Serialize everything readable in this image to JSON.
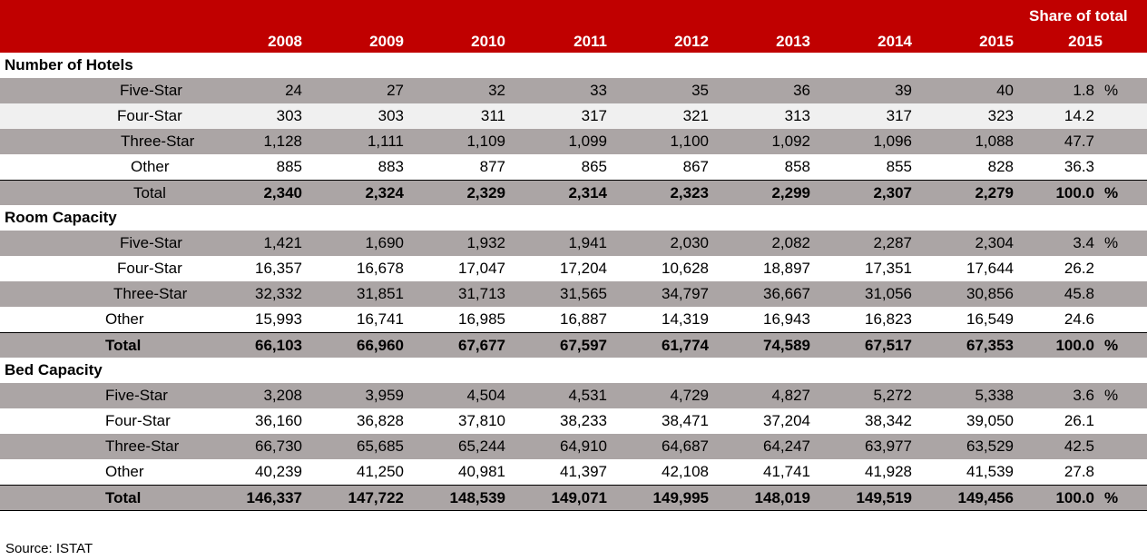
{
  "header": {
    "share_line1": "Share of total",
    "columns": [
      "2008",
      "2009",
      "2010",
      "2011",
      "2012",
      "2013",
      "2014",
      "2015",
      "2015"
    ]
  },
  "sections": [
    {
      "title": "Number of Hotels",
      "rows": [
        {
          "label": "Five-Star",
          "values": [
            "24",
            "27",
            "32",
            "33",
            "35",
            "36",
            "39",
            "40",
            "1.8"
          ],
          "unit": "%"
        },
        {
          "label": "Four-Star",
          "values": [
            "303",
            "303",
            "311",
            "317",
            "321",
            "313",
            "317",
            "323",
            "14.2"
          ],
          "unit": ""
        },
        {
          "label": "Three-Star",
          "values": [
            "1,128",
            "1,111",
            "1,109",
            "1,099",
            "1,100",
            "1,092",
            "1,096",
            "1,088",
            "47.7"
          ],
          "unit": ""
        },
        {
          "label": "Other",
          "values": [
            "885",
            "883",
            "877",
            "865",
            "867",
            "858",
            "855",
            "828",
            "36.3"
          ],
          "unit": ""
        },
        {
          "label": "Total",
          "values": [
            "2,340",
            "2,324",
            "2,329",
            "2,314",
            "2,323",
            "2,299",
            "2,307",
            "2,279",
            "100.0"
          ],
          "unit": "%"
        }
      ]
    },
    {
      "title": "Room Capacity",
      "rows": [
        {
          "label": "Five-Star",
          "values": [
            "1,421",
            "1,690",
            "1,932",
            "1,941",
            "2,030",
            "2,082",
            "2,287",
            "2,304",
            "3.4"
          ],
          "unit": "%"
        },
        {
          "label": "Four-Star",
          "values": [
            "16,357",
            "16,678",
            "17,047",
            "17,204",
            "10,628",
            "18,897",
            "17,351",
            "17,644",
            "26.2"
          ],
          "unit": ""
        },
        {
          "label": "Three-Star",
          "values": [
            "32,332",
            "31,851",
            "31,713",
            "31,565",
            "34,797",
            "36,667",
            "31,056",
            "30,856",
            "45.8"
          ],
          "unit": ""
        },
        {
          "label": "Other",
          "values": [
            "15,993",
            "16,741",
            "16,985",
            "16,887",
            "14,319",
            "16,943",
            "16,823",
            "16,549",
            "24.6"
          ],
          "unit": ""
        },
        {
          "label": "Total",
          "values": [
            "66,103",
            "66,960",
            "67,677",
            "67,597",
            "61,774",
            "74,589",
            "67,517",
            "67,353",
            "100.0"
          ],
          "unit": "%"
        }
      ]
    },
    {
      "title": "Bed Capacity",
      "rows": [
        {
          "label": "Five-Star",
          "values": [
            "3,208",
            "3,959",
            "4,504",
            "4,531",
            "4,729",
            "4,827",
            "5,272",
            "5,338",
            "3.6"
          ],
          "unit": "%"
        },
        {
          "label": "Four-Star",
          "values": [
            "36,160",
            "36,828",
            "37,810",
            "38,233",
            "38,471",
            "37,204",
            "38,342",
            "39,050",
            "26.1"
          ],
          "unit": ""
        },
        {
          "label": "Three-Star",
          "values": [
            "66,730",
            "65,685",
            "65,244",
            "64,910",
            "64,687",
            "64,247",
            "63,977",
            "63,529",
            "42.5"
          ],
          "unit": ""
        },
        {
          "label": "Other",
          "values": [
            "40,239",
            "41,250",
            "40,981",
            "41,397",
            "42,108",
            "41,741",
            "41,928",
            "41,539",
            "27.8"
          ],
          "unit": ""
        },
        {
          "label": "Total",
          "values": [
            "146,337",
            "147,722",
            "148,539",
            "149,071",
            "149,995",
            "148,019",
            "149,519",
            "149,456",
            "100.0"
          ],
          "unit": "%"
        }
      ]
    }
  ],
  "source": "Source: ISTAT"
}
